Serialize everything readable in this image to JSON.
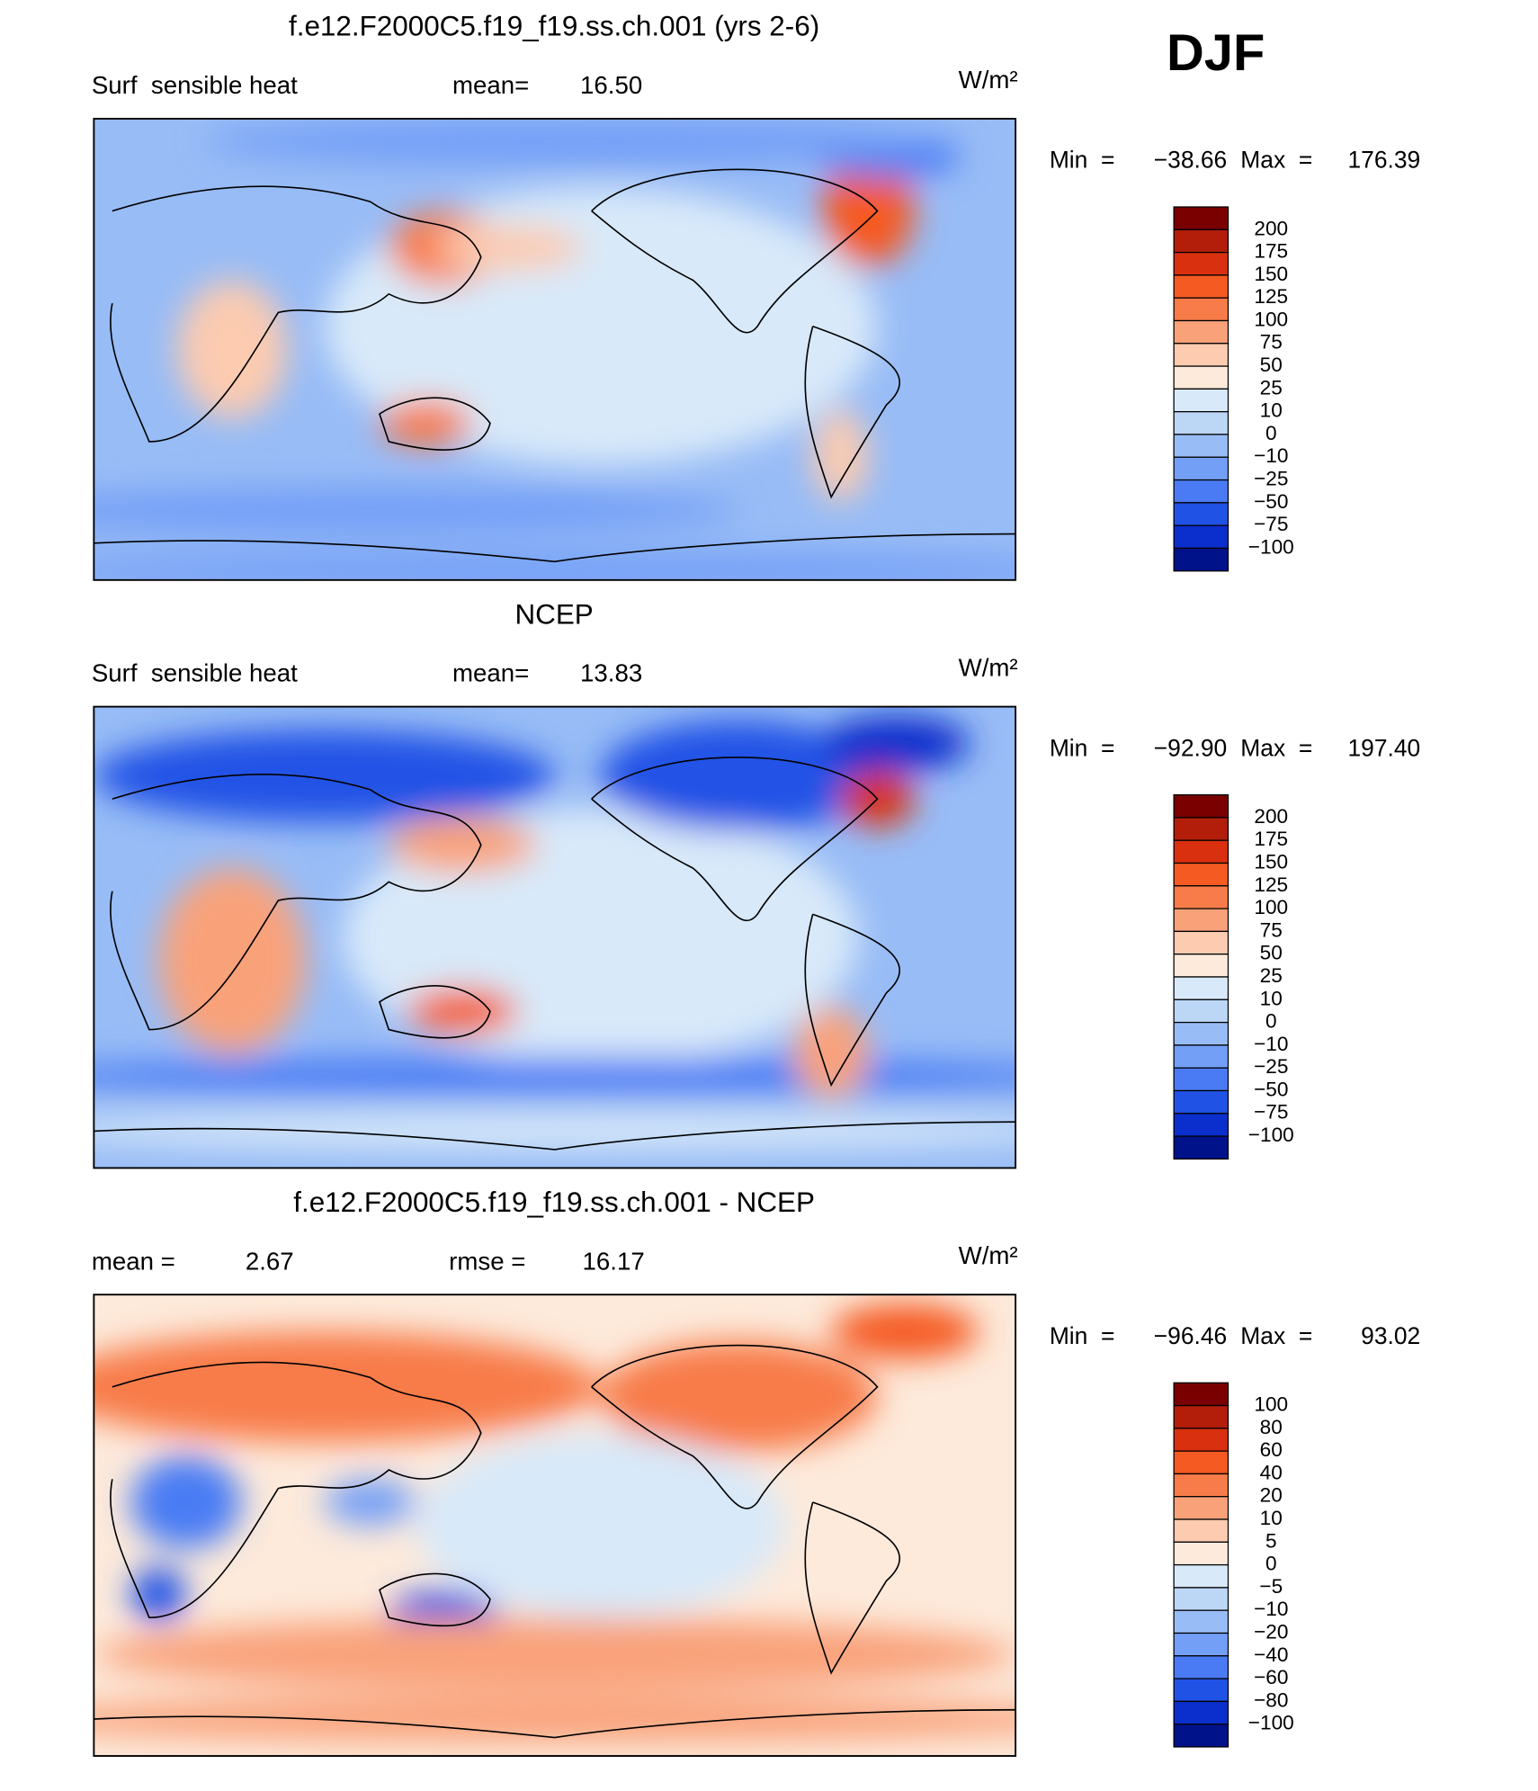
{
  "season": "DJF",
  "panels": [
    {
      "title": "f.e12.F2000C5.f19_f19.ss.ch.001 (yrs 2-6)",
      "labels": [
        {
          "text": "Surf  sensible heat"
        },
        {
          "text": "mean="
        },
        {
          "text": "16.50"
        }
      ],
      "units": "W/m²",
      "min_label": "Min  =",
      "min": "−38.66",
      "max_label": "Max  =",
      "max": "176.39",
      "colorbar": {
        "levels": [
          "200",
          "175",
          "150",
          "125",
          "100",
          "75",
          "50",
          "25",
          "10",
          "0",
          "−10",
          "−25",
          "−50",
          "−75",
          "−100"
        ],
        "colors": [
          "#7a0000",
          "#b21e0a",
          "#d9300f",
          "#f55a22",
          "#f87c4a",
          "#f9a27a",
          "#fccbb0",
          "#fdeadb",
          "#d8e9f9",
          "#bcd6f6",
          "#98bcf6",
          "#739ff7",
          "#4a7bf4",
          "#2152e6",
          "#0b2fcc",
          "#00128a"
        ]
      }
    },
    {
      "title": "NCEP",
      "labels": [
        {
          "text": "Surf  sensible heat"
        },
        {
          "text": "mean="
        },
        {
          "text": "13.83"
        }
      ],
      "units": "W/m²",
      "min_label": "Min  =",
      "min": "−92.90",
      "max_label": "Max  =",
      "max": "197.40",
      "colorbar": {
        "levels": [
          "200",
          "175",
          "150",
          "125",
          "100",
          "75",
          "50",
          "25",
          "10",
          "0",
          "−10",
          "−25",
          "−50",
          "−75",
          "−100"
        ],
        "colors": [
          "#7a0000",
          "#b21e0a",
          "#d9300f",
          "#f55a22",
          "#f87c4a",
          "#f9a27a",
          "#fccbb0",
          "#fdeadb",
          "#d8e9f9",
          "#bcd6f6",
          "#98bcf6",
          "#739ff7",
          "#4a7bf4",
          "#2152e6",
          "#0b2fcc",
          "#00128a"
        ]
      }
    },
    {
      "title": "f.e12.F2000C5.f19_f19.ss.ch.001 - NCEP",
      "labels": [
        {
          "text": "mean ="
        },
        {
          "text": "2.67"
        },
        {
          "text": "rmse ="
        },
        {
          "text": "16.17"
        }
      ],
      "units": "W/m²",
      "min_label": "Min  =",
      "min": "−96.46",
      "max_label": "Max  =",
      "max": "93.02",
      "colorbar": {
        "levels": [
          "100",
          "80",
          "60",
          "40",
          "20",
          "10",
          "5",
          "0",
          "−5",
          "−10",
          "−20",
          "−40",
          "−60",
          "−80",
          "−100"
        ],
        "colors": [
          "#7a0000",
          "#b21e0a",
          "#d9300f",
          "#f55a22",
          "#f87c4a",
          "#f9a27a",
          "#fccbb0",
          "#fdeadb",
          "#d8e9f9",
          "#bcd6f6",
          "#98bcf6",
          "#739ff7",
          "#4a7bf4",
          "#2152e6",
          "#0b2fcc",
          "#00128a"
        ]
      }
    }
  ]
}
